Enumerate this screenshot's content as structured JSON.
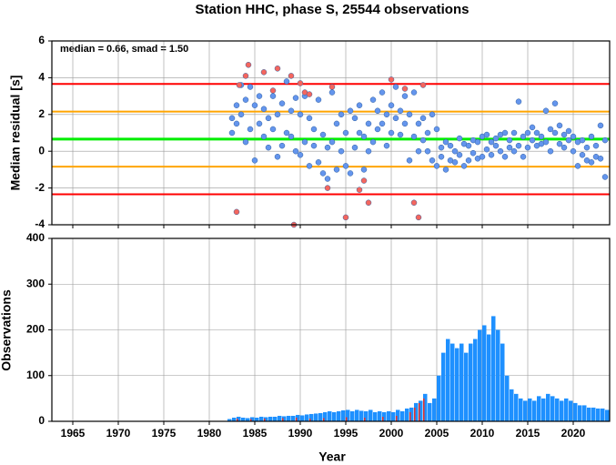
{
  "chart_data": [
    {
      "type": "scatter",
      "title": "Station HHC, phase S, 25544 observations",
      "ylabel": "Median residual [s]",
      "annotation": "median = 0.66, smad = 1.50",
      "xlim": [
        1962.7,
        2024
      ],
      "xticks": [
        1965,
        1970,
        1975,
        1980,
        1985,
        1990,
        1995,
        2000,
        2005,
        2010,
        2015,
        2020
      ],
      "ylim": [
        -4,
        6
      ],
      "yticks": [
        -4,
        -2,
        0,
        2,
        4,
        6
      ],
      "grid": true,
      "hlines": [
        {
          "value": 3.66,
          "color": "#ff0000"
        },
        {
          "value": 2.16,
          "color": "#ffa500"
        },
        {
          "value": 0.66,
          "color": "#00ee00"
        },
        {
          "value": -0.84,
          "color": "#ffa500"
        },
        {
          "value": -2.34,
          "color": "#ff0000"
        }
      ],
      "series": [
        {
          "color": "#6495ed",
          "x": [
            1982.5,
            1982.5,
            1983,
            1983,
            1983.5,
            1983.5,
            1984,
            1984,
            1984.5,
            1984.5,
            1985,
            1985,
            1985.5,
            1985.5,
            1986,
            1986,
            1986.5,
            1986.5,
            1987,
            1987,
            1987.5,
            1987.5,
            1988,
            1988,
            1988.5,
            1988.5,
            1989,
            1989,
            1989.5,
            1989.5,
            1990,
            1990,
            1990.5,
            1990.5,
            1991,
            1991,
            1991.5,
            1991.5,
            1992,
            1992,
            1992.5,
            1992.5,
            1993,
            1993,
            1993.5,
            1993.5,
            1994,
            1994,
            1994.5,
            1994.5,
            1995,
            1995,
            1995.5,
            1995.5,
            1996,
            1996,
            1996.5,
            1996.5,
            1997,
            1997,
            1997.5,
            1997.5,
            1998,
            1998,
            1998.5,
            1998.5,
            1999,
            1999,
            1999.5,
            1999.5,
            2000,
            2000,
            2000.5,
            2000.5,
            2001,
            2001,
            2001.5,
            2001.5,
            2002,
            2002,
            2002.5,
            2002.5,
            2003,
            2003,
            2003.5,
            2003.5,
            2004,
            2004,
            2004.5,
            2004.5,
            2005,
            2005,
            2005.5,
            2005.5,
            2006,
            2006,
            2006.5,
            2006.5,
            2007,
            2007,
            2007.5,
            2007.5,
            2008,
            2008,
            2008.5,
            2008.5,
            2009,
            2009,
            2009.5,
            2009.5,
            2010,
            2010,
            2010.5,
            2010.5,
            2011,
            2011,
            2011.5,
            2011.5,
            2012,
            2012,
            2012.5,
            2012.5,
            2013,
            2013,
            2013.5,
            2013.5,
            2014,
            2014,
            2014.5,
            2014.5,
            2015,
            2015,
            2015.5,
            2015.5,
            2016,
            2016,
            2016.5,
            2016.5,
            2017,
            2017,
            2017.5,
            2017.5,
            2018,
            2018,
            2018.5,
            2018.5,
            2019,
            2019,
            2019.5,
            2019.5,
            2020,
            2020,
            2020.5,
            2020.5,
            2021,
            2021,
            2021.5,
            2021.5,
            2022,
            2022,
            2022.5,
            2022.5,
            2023,
            2023,
            2023.5,
            2023.5
          ],
          "values": [
            1.8,
            1.0,
            2.5,
            1.5,
            3.6,
            2.0,
            0.5,
            2.8,
            1.2,
            3.5,
            -0.5,
            2.5,
            1.5,
            3.0,
            0.8,
            2.3,
            1.8,
            0.2,
            3.0,
            1.2,
            2.0,
            -0.3,
            0.3,
            2.6,
            3.8,
            1.0,
            2.2,
            0.8,
            2.9,
            0.0,
            -0.2,
            2.0,
            3.0,
            0.5,
            1.8,
            -0.8,
            0.3,
            1.2,
            2.8,
            -0.6,
            0.9,
            -1.2,
            0.2,
            -1.5,
            3.2,
            0.5,
            1.5,
            -1.0,
            0.0,
            2.0,
            1.0,
            -0.8,
            2.2,
            -1.2,
            1.8,
            0.2,
            2.5,
            1.0,
            0.8,
            -1.0,
            1.5,
            0.0,
            2.8,
            0.5,
            1.2,
            2.2,
            3.2,
            1.5,
            2.0,
            0.3,
            1.0,
            2.5,
            3.5,
            1.8,
            2.2,
            0.9,
            3.0,
            1.5,
            2.0,
            -0.5,
            3.2,
            0.8,
            1.5,
            0.0,
            0.6,
            1.8,
            1.0,
            0.0,
            2.0,
            -0.5,
            1.2,
            -0.8,
            0.2,
            -0.3,
            0.5,
            -1.0,
            -0.5,
            0.3,
            0.0,
            -0.6,
            0.7,
            -0.2,
            -0.8,
            0.4,
            0.3,
            -0.5,
            0.6,
            -0.1,
            -0.4,
            0.5,
            0.8,
            -0.3,
            0.1,
            0.9,
            0.5,
            -0.2,
            0.3,
            0.7,
            0.9,
            0.0,
            -0.3,
            1.0,
            0.6,
            0.2,
            1.0,
            0.0,
            2.7,
            0.3,
            0.8,
            -0.3,
            1.0,
            0.2,
            0.6,
            1.3,
            0.3,
            1.0,
            0.8,
            0.4,
            2.2,
            0.5,
            1.2,
            0.0,
            2.6,
            1.0,
            0.4,
            1.4,
            0.9,
            0.2,
            0.6,
            1.1,
            0.0,
            0.8,
            0.5,
            -0.8,
            -0.2,
            0.6,
            0.2,
            -0.5,
            -0.6,
            0.8,
            0.3,
            -0.3,
            1.4,
            -0.4,
            0.6,
            -1.4
          ]
        },
        {
          "color": "#f4665e",
          "x": [
            1983,
            1983.3,
            1984,
            1984.3,
            1986,
            1987,
            1987.5,
            1989,
            1989.3,
            1990,
            1990.5,
            1991,
            1993,
            1993.5,
            1995,
            1996.5,
            1997,
            1997.5,
            2000,
            2001.5,
            2002.5,
            2003,
            2003.5
          ],
          "values": [
            -3.3,
            3.6,
            4.1,
            4.7,
            4.3,
            3.3,
            4.5,
            4.1,
            -4.0,
            3.7,
            3.2,
            3.1,
            -2.0,
            3.5,
            -3.6,
            -2.1,
            -1.6,
            -2.8,
            3.9,
            3.4,
            -2.8,
            -3.6,
            3.6
          ]
        }
      ]
    },
    {
      "type": "bar",
      "ylabel": "Observations",
      "xlabel": "Year",
      "xlim": [
        1962.7,
        2024
      ],
      "xticks": [
        1965,
        1970,
        1975,
        1980,
        1985,
        1990,
        1995,
        2000,
        2005,
        2010,
        2015,
        2020
      ],
      "ylim": [
        0,
        400
      ],
      "yticks": [
        0,
        100,
        200,
        300,
        400
      ],
      "grid": true,
      "series": [
        {
          "color": "#1e90ff",
          "x": [
            1982,
            1982.5,
            1983,
            1983.5,
            1984,
            1984.5,
            1985,
            1985.5,
            1986,
            1986.5,
            1987,
            1987.5,
            1988,
            1988.5,
            1989,
            1989.5,
            1990,
            1990.5,
            1991,
            1991.5,
            1992,
            1992.5,
            1993,
            1993.5,
            1994,
            1994.5,
            1995,
            1995.5,
            1996,
            1996.5,
            1997,
            1997.5,
            1998,
            1998.5,
            1999,
            1999.5,
            2000,
            2000.5,
            2001,
            2001.5,
            2002,
            2002.5,
            2003,
            2003.5,
            2004,
            2004.5,
            2005,
            2005.5,
            2006,
            2006.5,
            2007,
            2007.5,
            2008,
            2008.5,
            2009,
            2009.5,
            2010,
            2010.5,
            2011,
            2011.5,
            2012,
            2012.5,
            2013,
            2013.5,
            2014,
            2014.5,
            2015,
            2015.5,
            2016,
            2016.5,
            2017,
            2017.5,
            2018,
            2018.5,
            2019,
            2019.5,
            2020,
            2020.5,
            2021,
            2021.5,
            2022,
            2022.5,
            2023,
            2023.5
          ],
          "values": [
            5,
            8,
            10,
            8,
            7,
            9,
            8,
            10,
            9,
            10,
            10,
            12,
            11,
            12,
            12,
            14,
            13,
            15,
            16,
            17,
            18,
            20,
            22,
            20,
            22,
            24,
            25,
            22,
            25,
            23,
            22,
            25,
            20,
            22,
            20,
            22,
            20,
            25,
            22,
            28,
            30,
            40,
            45,
            60,
            40,
            50,
            100,
            150,
            180,
            170,
            160,
            170,
            150,
            170,
            180,
            200,
            210,
            190,
            230,
            200,
            170,
            100,
            70,
            60,
            50,
            45,
            50,
            45,
            55,
            50,
            60,
            55,
            50,
            45,
            50,
            45,
            40,
            35,
            35,
            30,
            30,
            28,
            28,
            25
          ]
        },
        {
          "color": "#e8312a",
          "x": [
            1983,
            1984.5,
            1986,
            1988,
            1989.5,
            1991,
            1992.5,
            1995,
            1997,
            1999,
            2000.5,
            2002,
            2002.5,
            2003,
            2003.5
          ],
          "values": [
            6,
            5,
            6,
            7,
            8,
            6,
            7,
            9,
            8,
            10,
            12,
            20,
            30,
            40,
            50
          ]
        }
      ]
    }
  ]
}
